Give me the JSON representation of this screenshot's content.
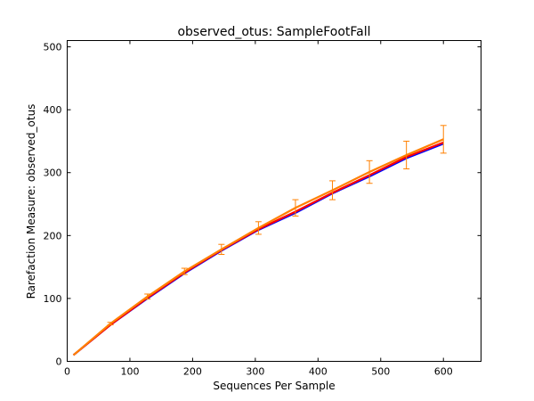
{
  "chart_data": {
    "type": "line",
    "title": "observed_otus: SampleFootFall",
    "xlabel": "Sequences Per Sample",
    "ylabel": "Rarefaction Measure: observed_otus",
    "xlim": [
      0,
      660
    ],
    "ylim": [
      0,
      510
    ],
    "xticks": [
      0,
      100,
      200,
      300,
      400,
      500,
      600
    ],
    "yticks": [
      0,
      100,
      200,
      300,
      400,
      500
    ],
    "grid": false,
    "x": [
      10,
      69,
      128,
      187,
      246,
      305,
      364,
      423,
      482,
      541,
      600
    ],
    "series": [
      {
        "color": "#0000ff",
        "values": [
          10,
          58,
          100,
          140,
          176,
          209,
          236,
          267,
          294,
          323,
          346
        ]
      },
      {
        "color": "#ff0000",
        "values": [
          10,
          58,
          101,
          141,
          177,
          210,
          238,
          268,
          296,
          325,
          348
        ]
      },
      {
        "color": "#ff8000",
        "values": [
          10,
          60,
          103,
          143,
          178,
          212,
          244,
          272,
          301,
          328,
          353
        ],
        "errors": [
          0,
          2,
          4,
          5,
          8,
          10,
          13,
          15,
          18,
          22,
          22
        ]
      }
    ]
  }
}
